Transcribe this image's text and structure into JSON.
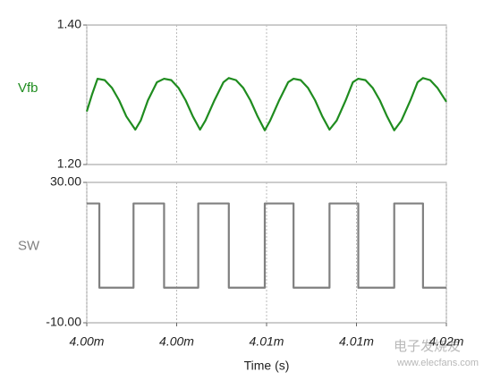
{
  "chart_data": [
    {
      "type": "line",
      "ylabel": "Vfb",
      "color": "#1f8c1f",
      "xlim": [
        0.004,
        0.00402
      ],
      "ylim": [
        1.2,
        1.4
      ],
      "yticks": [
        {
          "value": 1.4,
          "label": "1.40"
        },
        {
          "value": 1.2,
          "label": "1.20"
        }
      ],
      "x": [
        0.004,
        0.0040003,
        0.0040006,
        0.004001,
        0.0040014,
        0.0040018,
        0.0040022,
        0.0040027,
        0.004003,
        0.0040034,
        0.0040039,
        0.0040043,
        0.0040047,
        0.0040051,
        0.0040055,
        0.0040059,
        0.0040063,
        0.0040066,
        0.0040071,
        0.0040076,
        0.0040079,
        0.0040083,
        0.0040087,
        0.0040091,
        0.0040095,
        0.0040099,
        0.0040102,
        0.0040107,
        0.0040112,
        0.0040115,
        0.0040119,
        0.0040123,
        0.0040127,
        0.0040131,
        0.0040135,
        0.0040139,
        0.0040144,
        0.0040148,
        0.0040151,
        0.0040155,
        0.0040159,
        0.0040163,
        0.0040167,
        0.0040171,
        0.0040175,
        0.004018,
        0.0040184,
        0.0040187,
        0.0040191,
        0.0040195,
        0.00402
      ],
      "values": [
        1.276,
        1.301,
        1.323,
        1.321,
        1.31,
        1.292,
        1.269,
        1.25,
        1.263,
        1.292,
        1.318,
        1.323,
        1.321,
        1.31,
        1.292,
        1.269,
        1.25,
        1.263,
        1.292,
        1.318,
        1.324,
        1.321,
        1.31,
        1.292,
        1.269,
        1.249,
        1.263,
        1.292,
        1.318,
        1.323,
        1.321,
        1.31,
        1.292,
        1.269,
        1.25,
        1.263,
        1.292,
        1.318,
        1.323,
        1.321,
        1.31,
        1.292,
        1.269,
        1.249,
        1.263,
        1.292,
        1.318,
        1.324,
        1.321,
        1.31,
        1.29
      ]
    },
    {
      "type": "line",
      "ylabel": "SW",
      "xlabel": "Time (s)",
      "color": "#808080",
      "xlim": [
        0.004,
        0.00402
      ],
      "ylim": [
        -10,
        30
      ],
      "xticks": [
        {
          "value": 0.004,
          "label": "4.00m"
        },
        {
          "value": 0.004005,
          "label": "4.00m"
        },
        {
          "value": 0.00401,
          "label": "4.01m"
        },
        {
          "value": 0.004015,
          "label": "4.01m"
        },
        {
          "value": 0.00402,
          "label": "4.02m"
        }
      ],
      "yticks": [
        {
          "value": 30,
          "label": "30.00"
        },
        {
          "value": -10,
          "label": "-10.00"
        }
      ],
      "x": [
        0.004,
        0.0040007,
        0.0040007,
        0.0040026,
        0.0040026,
        0.0040043,
        0.0040043,
        0.0040062,
        0.0040062,
        0.0040079,
        0.0040079,
        0.0040099,
        0.0040099,
        0.0040115,
        0.0040115,
        0.0040135,
        0.0040135,
        0.0040151,
        0.0040151,
        0.0040171,
        0.0040171,
        0.0040187,
        0.0040187,
        0.00402
      ],
      "values": [
        24,
        24,
        0,
        0,
        24,
        24,
        0,
        0,
        24,
        24,
        0,
        0,
        24,
        24,
        0,
        0,
        24,
        24,
        0,
        0,
        24,
        24,
        0,
        0
      ]
    }
  ],
  "watermark": {
    "name": "电子发烧友",
    "url": "www.elecfans.com"
  }
}
